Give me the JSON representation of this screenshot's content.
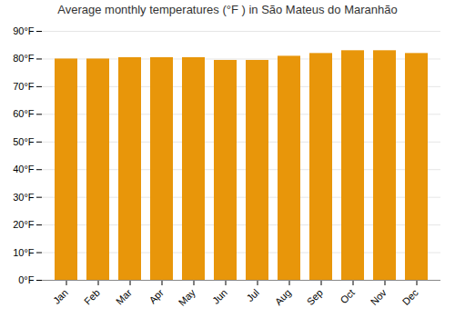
{
  "chart_data": {
    "type": "bar",
    "title": "Average monthly temperatures (°F ) in São Mateus do Maranhão",
    "categories": [
      "Jan",
      "Feb",
      "Mar",
      "Apr",
      "May",
      "Jun",
      "Jul",
      "Aug",
      "Sep",
      "Oct",
      "Nov",
      "Dec"
    ],
    "values": [
      80,
      80,
      80.5,
      80.5,
      80.5,
      79.5,
      79.5,
      81,
      82,
      83,
      83,
      82
    ],
    "color": "#E8960A",
    "ylim": [
      0,
      90
    ],
    "yticks": [
      {
        "value": 0,
        "label": "0°F"
      },
      {
        "value": 10,
        "label": "10°F"
      },
      {
        "value": 20,
        "label": "20°F"
      },
      {
        "value": 30,
        "label": "30°F"
      },
      {
        "value": 40,
        "label": "40°F"
      },
      {
        "value": 50,
        "label": "50°F"
      },
      {
        "value": 60,
        "label": "60°F"
      },
      {
        "value": 70,
        "label": "70°F"
      },
      {
        "value": 80,
        "label": "80°F"
      },
      {
        "value": 90,
        "label": "90°F"
      }
    ],
    "grid": true
  }
}
